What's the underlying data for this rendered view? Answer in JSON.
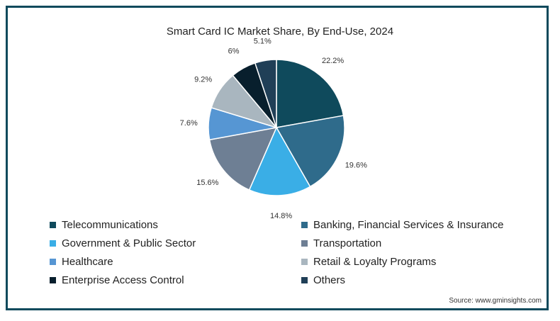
{
  "chart_data": {
    "type": "pie",
    "title": "Smart Card IC Market Share, By End-Use, 2024",
    "slices": [
      {
        "label": "Telecommunications",
        "value": 22.2,
        "display": "22.2%",
        "color": "#0f4a5c"
      },
      {
        "label": "Banking, Financial Services & Insurance",
        "value": 19.6,
        "display": "19.6%",
        "color": "#2f6b8b"
      },
      {
        "label": "Government & Public Sector",
        "value": 14.8,
        "display": "14.8%",
        "color": "#3aaee6"
      },
      {
        "label": "Transportation",
        "value": 15.6,
        "display": "15.6%",
        "color": "#6e7f94"
      },
      {
        "label": "Healthcare",
        "value": 7.6,
        "display": "7.6%",
        "color": "#5696d3"
      },
      {
        "label": "Retail & Loyalty Programs",
        "value": 9.2,
        "display": "9.2%",
        "color": "#a9b6bf"
      },
      {
        "label": "Enterprise Access Control",
        "value": 6.0,
        "display": "6%",
        "color": "#081f2d"
      },
      {
        "label": "Others",
        "value": 5.1,
        "display": "5.1%",
        "color": "#203f57"
      }
    ],
    "legend_position": "bottom"
  },
  "source": "Source: www.gminsights.com"
}
